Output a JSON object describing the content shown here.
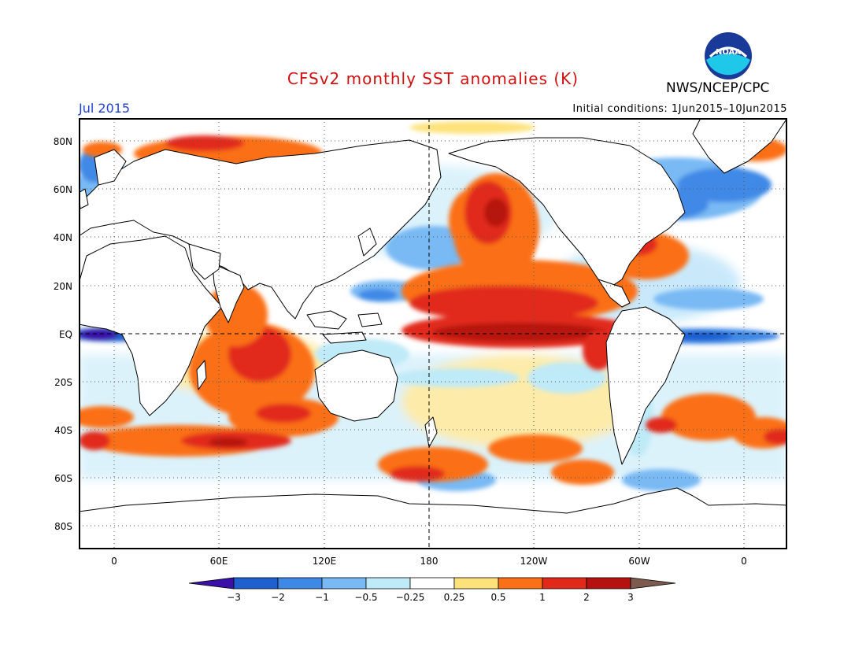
{
  "header": {
    "title": "CFSv2 monthly SST anomalies (K)",
    "agency": "NWS/NCEP/CPC",
    "month": "Jul 2015",
    "initial_conditions": "Initial conditions: 1Jun2015–10Jun2015",
    "logo_text": "NOAA"
  },
  "map": {
    "projection": "equirectangular",
    "lat_labels": [
      "80N",
      "60N",
      "40N",
      "20N",
      "EQ",
      "20S",
      "40S",
      "60S",
      "80S"
    ],
    "lon_labels": [
      "0",
      "60E",
      "120E",
      "180",
      "120W",
      "60W",
      "0"
    ],
    "grid": "dotted",
    "reference_lines": [
      "equator dashed",
      "180 dashed"
    ]
  },
  "legend": {
    "levels": [
      "−3",
      "−2",
      "−1",
      "−0.5",
      "−0.25",
      "0.25",
      "0.5",
      "1",
      "2",
      "3"
    ],
    "colors": [
      "#3a10a8",
      "#1f5fcf",
      "#3f89e6",
      "#79b9f4",
      "#bfeaf8",
      "#ffffff",
      "#fde27a",
      "#fb6f17",
      "#e1291a",
      "#b5120f",
      "#7c5a4d"
    ]
  },
  "colors": {
    "land": "#ffffff",
    "title": "#d01010",
    "month": "#2040d0"
  }
}
